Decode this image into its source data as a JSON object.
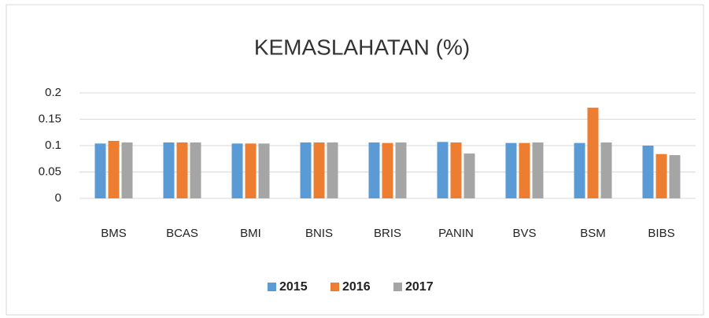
{
  "chart_data": {
    "type": "bar",
    "title": "KEMASLAHATAN (%)",
    "categories": [
      "BMS",
      "BCAS",
      "BMI",
      "BNIS",
      "BRIS",
      "PANIN",
      "BVS",
      "BSM",
      "BIBS"
    ],
    "series": [
      {
        "name": "2015",
        "color": "#5b9bd5",
        "values": [
          0.104,
          0.106,
          0.104,
          0.106,
          0.106,
          0.107,
          0.105,
          0.105,
          0.1
        ]
      },
      {
        "name": "2016",
        "color": "#ed7d31",
        "values": [
          0.109,
          0.106,
          0.104,
          0.106,
          0.105,
          0.106,
          0.105,
          0.172,
          0.084
        ]
      },
      {
        "name": "2017",
        "color": "#a5a5a5",
        "values": [
          0.106,
          0.106,
          0.104,
          0.106,
          0.106,
          0.085,
          0.106,
          0.106,
          0.082
        ]
      }
    ],
    "ylim": [
      0,
      0.2
    ],
    "yticks": [
      0,
      0.05,
      0.1,
      0.15,
      0.2
    ],
    "grid": true,
    "legend": "bottom"
  }
}
